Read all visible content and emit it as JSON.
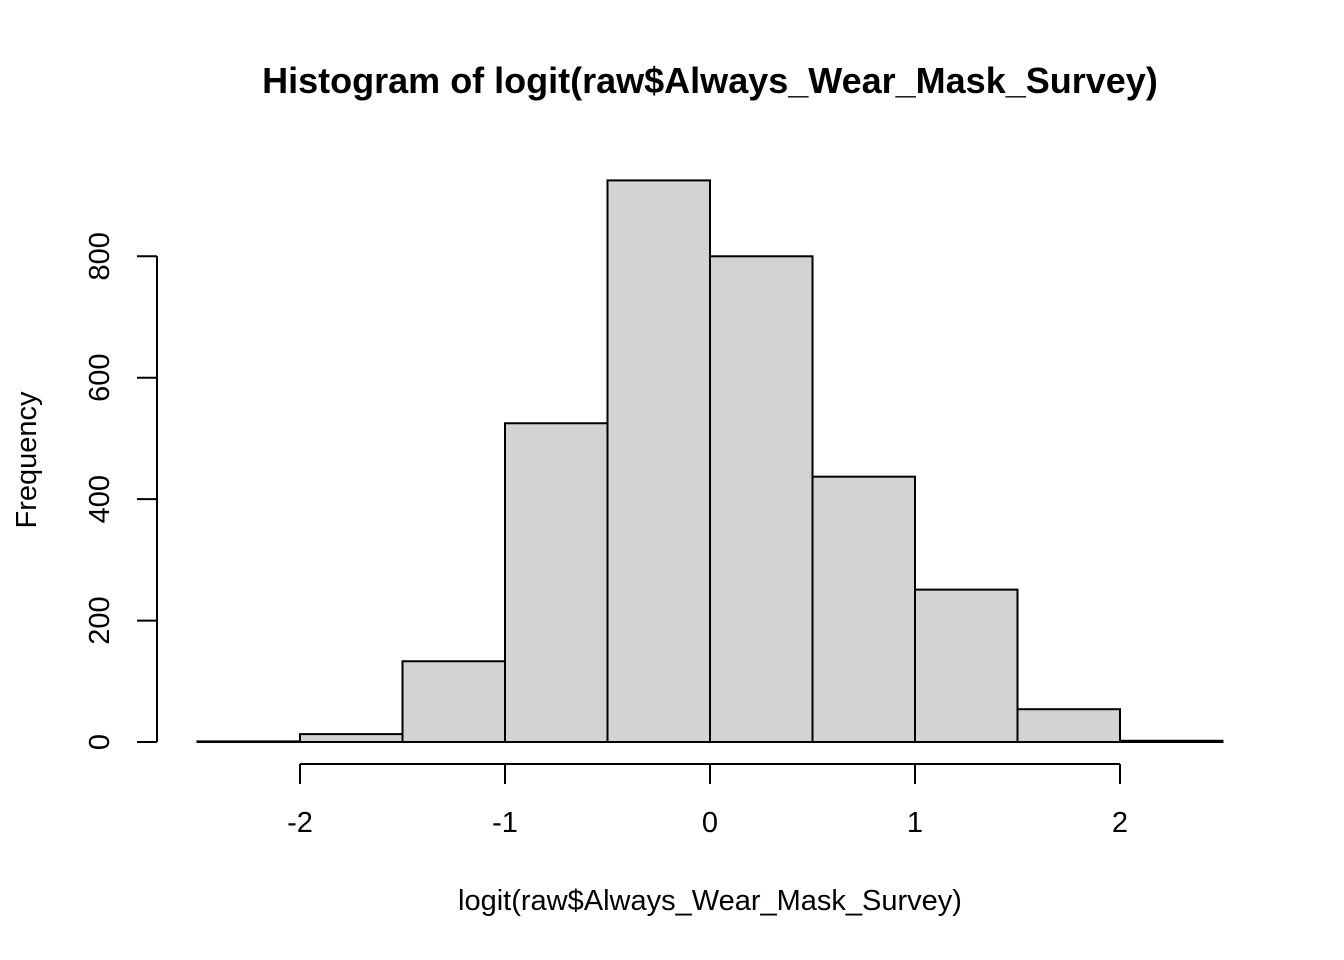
{
  "chart_data": {
    "type": "bar",
    "title": "Histogram of logit(raw$Always_Wear_Mask_Survey)",
    "xlabel": "logit(raw$Always_Wear_Mask_Survey)",
    "ylabel": "Frequency",
    "bin_edges": [
      -2.5,
      -2.0,
      -1.5,
      -1.0,
      -0.5,
      0.0,
      0.5,
      1.0,
      1.5,
      2.0,
      2.5
    ],
    "values": [
      1,
      13,
      133,
      525,
      925,
      800,
      437,
      251,
      54,
      2
    ],
    "xlim": [
      -2.5,
      2.5
    ],
    "ylim": [
      0,
      925
    ],
    "x_ticks": [
      -2,
      -1,
      0,
      1,
      2
    ],
    "x_tick_labels": [
      "-2",
      "-1",
      "0",
      "1",
      "2"
    ],
    "y_ticks": [
      0,
      200,
      400,
      600,
      800
    ],
    "y_tick_labels": [
      "0",
      "200",
      "400",
      "600",
      "800"
    ],
    "bar_color": "#d3d3d3",
    "grid": false,
    "legend": "none"
  }
}
